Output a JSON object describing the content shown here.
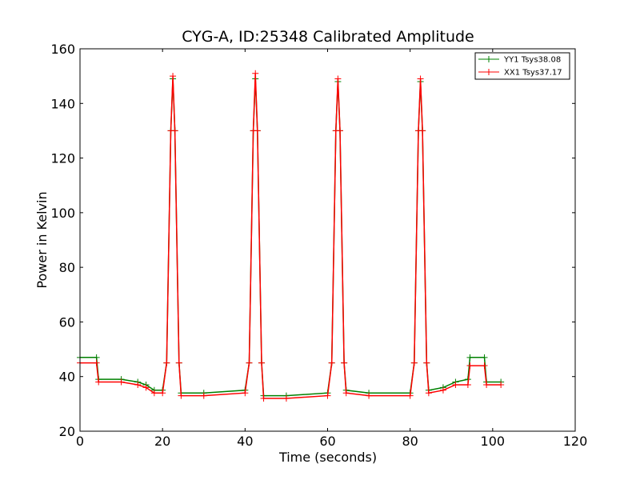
{
  "chart_data": {
    "type": "line",
    "title": "CYG-A, ID:25348 Calibrated Amplitude",
    "xlabel": "Time (seconds)",
    "ylabel": "Power in Kelvin",
    "xlim": [
      0,
      120
    ],
    "ylim": [
      20,
      160
    ],
    "xticks": [
      0,
      20,
      40,
      60,
      80,
      100,
      120
    ],
    "yticks": [
      20,
      40,
      60,
      80,
      100,
      120,
      140,
      160
    ],
    "grid": false,
    "legend_placement": "top-right",
    "series": [
      {
        "name": "YY1 Tsys38.08",
        "color": "#008000",
        "x": [
          0,
          4,
          4.5,
          10,
          14,
          16,
          18,
          20,
          21,
          22,
          22.5,
          23,
          24,
          24.5,
          30,
          40,
          41,
          42,
          42.5,
          43,
          44,
          44.5,
          50,
          60,
          61,
          62,
          62.5,
          63,
          64,
          64.5,
          70,
          80,
          81,
          82,
          82.5,
          83,
          84,
          84.5,
          88,
          91,
          94,
          94.5,
          98,
          98.5,
          102
        ],
        "values": [
          47,
          47,
          39,
          39,
          38,
          37,
          35,
          35,
          45,
          130,
          149,
          130,
          45,
          34,
          34,
          35,
          45,
          130,
          149,
          130,
          45,
          33,
          33,
          34,
          45,
          130,
          148,
          130,
          45,
          35,
          34,
          34,
          45,
          130,
          148,
          130,
          45,
          35,
          36,
          38,
          39,
          47,
          47,
          38,
          38
        ]
      },
      {
        "name": "XX1 Tsys37.17",
        "color": "#ff0000",
        "x": [
          0,
          4,
          4.5,
          10,
          14,
          16,
          18,
          20,
          21,
          22,
          22.5,
          23,
          24,
          24.5,
          30,
          40,
          41,
          42,
          42.5,
          43,
          44,
          44.5,
          50,
          60,
          61,
          62,
          62.5,
          63,
          64,
          64.5,
          70,
          80,
          81,
          82,
          82.5,
          83,
          84,
          84.5,
          88,
          91,
          94,
          94.5,
          98,
          98.5,
          102
        ],
        "values": [
          45,
          45,
          38,
          38,
          37,
          36,
          34,
          34,
          45,
          130,
          150,
          130,
          45,
          33,
          33,
          34,
          45,
          130,
          151,
          130,
          45,
          32,
          32,
          33,
          45,
          130,
          149,
          130,
          45,
          34,
          33,
          33,
          45,
          130,
          149,
          130,
          45,
          34,
          35,
          37,
          37,
          44,
          44,
          37,
          37
        ]
      }
    ]
  }
}
